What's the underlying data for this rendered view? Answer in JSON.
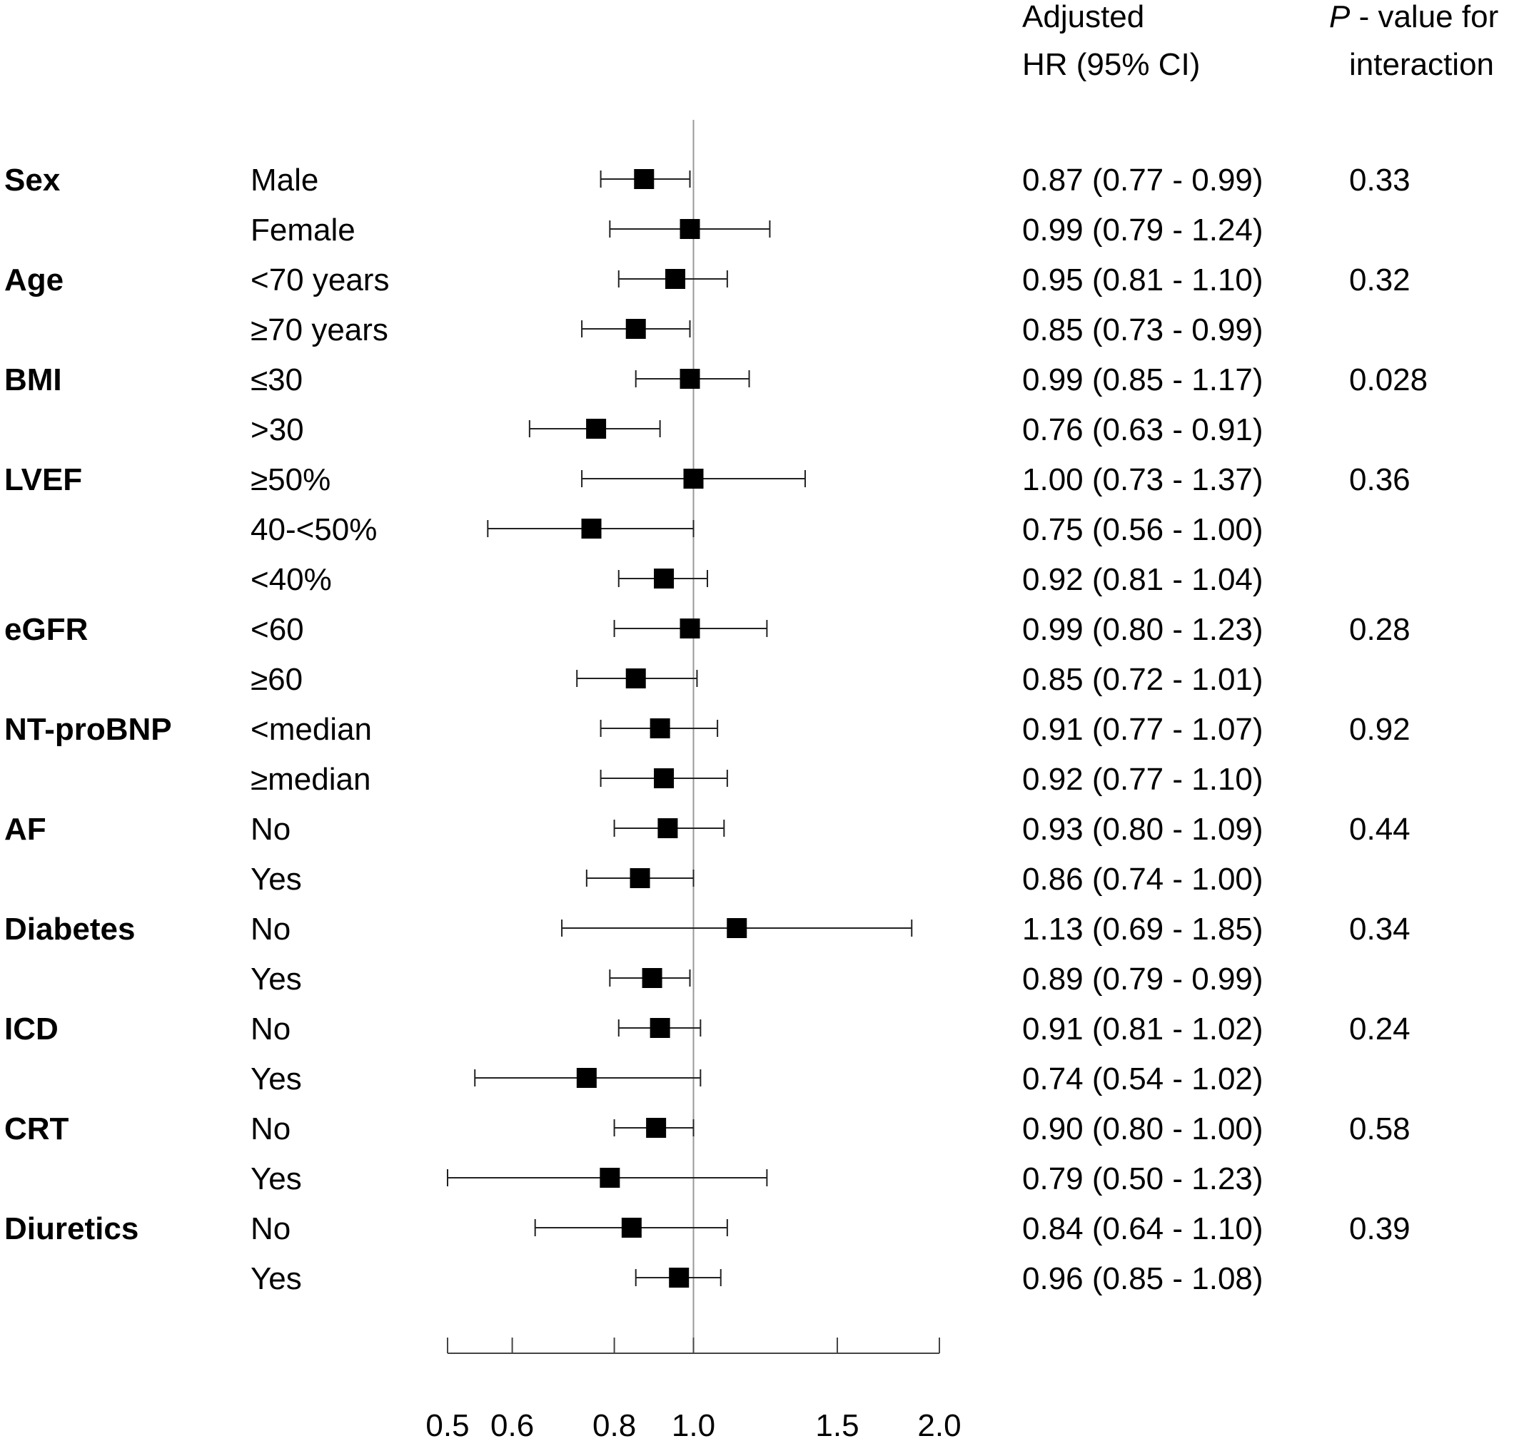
{
  "chart_data": {
    "type": "forest",
    "x_scale": "log",
    "xlim": [
      0.5,
      2.0
    ],
    "reference_line": 1.0,
    "x_ticks": [
      "0.5",
      "0.6",
      "0.8",
      "1.0",
      "1.5",
      "2.0"
    ],
    "x_tick_values": [
      0.5,
      0.6,
      0.8,
      1.0,
      1.5,
      2.0
    ],
    "header_hr": [
      "Adjusted",
      "HR (95% CI)"
    ],
    "header_p": [
      "P",
      " - value for",
      "interaction"
    ],
    "rows": [
      {
        "group": "Sex",
        "sub": "Male",
        "hr": 0.87,
        "lo": 0.77,
        "hi": 0.99,
        "text": "0.87 (0.77 - 0.99)",
        "p": "0.33"
      },
      {
        "group": "",
        "sub": "Female",
        "hr": 0.99,
        "lo": 0.79,
        "hi": 1.24,
        "text": "0.99 (0.79 - 1.24)",
        "p": ""
      },
      {
        "group": "Age",
        "sub": "<70 years",
        "hr": 0.95,
        "lo": 0.81,
        "hi": 1.1,
        "text": "0.95 (0.81 - 1.10)",
        "p": "0.32"
      },
      {
        "group": "",
        "sub": "≥70 years",
        "hr": 0.85,
        "lo": 0.73,
        "hi": 0.99,
        "text": "0.85 (0.73 - 0.99)",
        "p": ""
      },
      {
        "group": "BMI",
        "sub": "≤30",
        "hr": 0.99,
        "lo": 0.85,
        "hi": 1.17,
        "text": "0.99 (0.85 - 1.17)",
        "p": "0.028"
      },
      {
        "group": "",
        "sub": ">30",
        "hr": 0.76,
        "lo": 0.63,
        "hi": 0.91,
        "text": "0.76 (0.63 - 0.91)",
        "p": ""
      },
      {
        "group": "LVEF",
        "sub": "≥50%",
        "hr": 1.0,
        "lo": 0.73,
        "hi": 1.37,
        "text": "1.00 (0.73 - 1.37)",
        "p": "0.36"
      },
      {
        "group": "",
        "sub": "40-<50%",
        "hr": 0.75,
        "lo": 0.56,
        "hi": 1.0,
        "text": "0.75 (0.56 - 1.00)",
        "p": ""
      },
      {
        "group": "",
        "sub": "<40%",
        "hr": 0.92,
        "lo": 0.81,
        "hi": 1.04,
        "text": "0.92 (0.81 - 1.04)",
        "p": ""
      },
      {
        "group": "eGFR",
        "sub": "<60",
        "hr": 0.99,
        "lo": 0.8,
        "hi": 1.23,
        "text": "0.99 (0.80 - 1.23)",
        "p": "0.28"
      },
      {
        "group": "",
        "sub": "≥60",
        "hr": 0.85,
        "lo": 0.72,
        "hi": 1.01,
        "text": "0.85 (0.72 - 1.01)",
        "p": ""
      },
      {
        "group": "NT-proBNP",
        "sub": "<median",
        "hr": 0.91,
        "lo": 0.77,
        "hi": 1.07,
        "text": "0.91 (0.77 - 1.07)",
        "p": "0.92"
      },
      {
        "group": "",
        "sub": "≥median",
        "hr": 0.92,
        "lo": 0.77,
        "hi": 1.1,
        "text": "0.92 (0.77 - 1.10)",
        "p": ""
      },
      {
        "group": "AF",
        "sub": "No",
        "hr": 0.93,
        "lo": 0.8,
        "hi": 1.09,
        "text": "0.93 (0.80 - 1.09)",
        "p": "0.44"
      },
      {
        "group": "",
        "sub": "Yes",
        "hr": 0.86,
        "lo": 0.74,
        "hi": 1.0,
        "text": "0.86 (0.74 - 1.00)",
        "p": ""
      },
      {
        "group": "Diabetes",
        "sub": "No",
        "hr": 1.13,
        "lo": 0.69,
        "hi": 1.85,
        "text": "1.13 (0.69 - 1.85)",
        "p": "0.34"
      },
      {
        "group": "",
        "sub": "Yes",
        "hr": 0.89,
        "lo": 0.79,
        "hi": 0.99,
        "text": "0.89 (0.79 - 0.99)",
        "p": ""
      },
      {
        "group": "ICD",
        "sub": "No",
        "hr": 0.91,
        "lo": 0.81,
        "hi": 1.02,
        "text": "0.91 (0.81 - 1.02)",
        "p": "0.24"
      },
      {
        "group": "",
        "sub": "Yes",
        "hr": 0.74,
        "lo": 0.54,
        "hi": 1.02,
        "text": "0.74 (0.54 - 1.02)",
        "p": ""
      },
      {
        "group": "CRT",
        "sub": "No",
        "hr": 0.9,
        "lo": 0.8,
        "hi": 1.0,
        "text": "0.90 (0.80 - 1.00)",
        "p": "0.58"
      },
      {
        "group": "",
        "sub": "Yes",
        "hr": 0.79,
        "lo": 0.5,
        "hi": 1.23,
        "text": "0.79 (0.50 - 1.23)",
        "p": ""
      },
      {
        "group": "Diuretics",
        "sub": "No",
        "hr": 0.84,
        "lo": 0.64,
        "hi": 1.1,
        "text": "0.84 (0.64 - 1.10)",
        "p": "0.39"
      },
      {
        "group": "",
        "sub": "Yes",
        "hr": 0.96,
        "lo": 0.85,
        "hi": 1.08,
        "text": "0.96 (0.85 - 1.08)",
        "p": ""
      }
    ]
  }
}
